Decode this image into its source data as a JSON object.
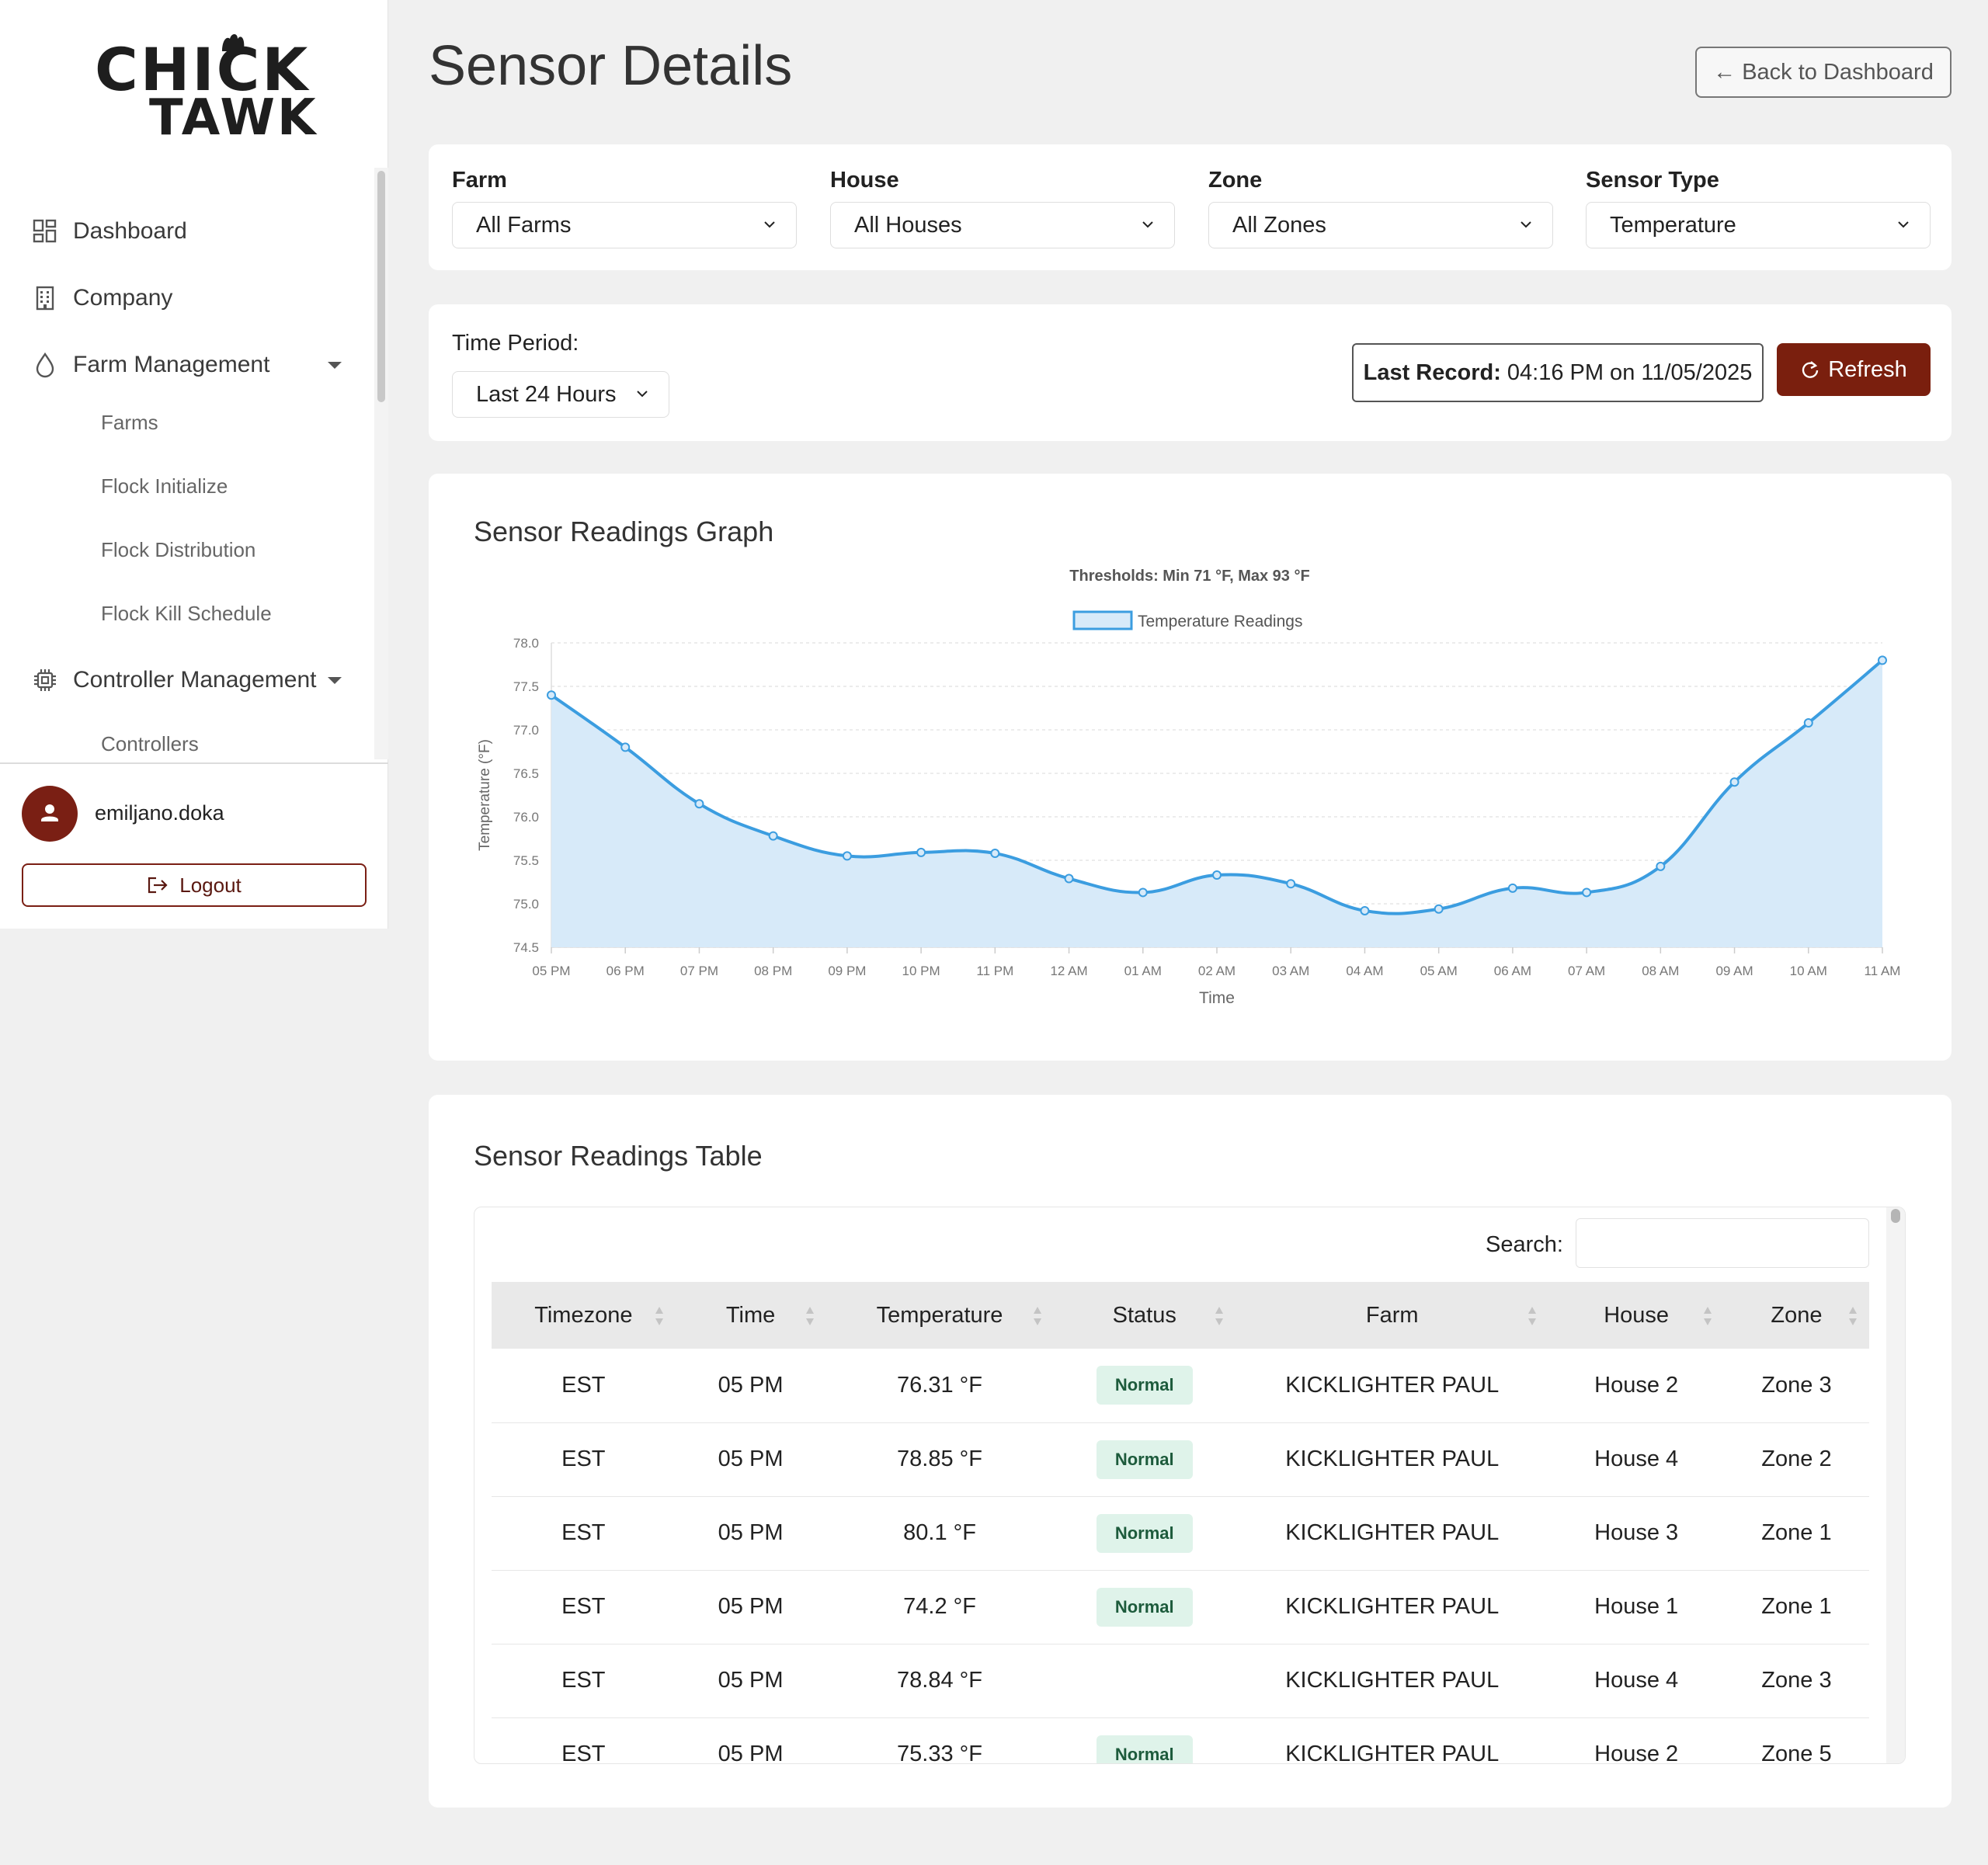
{
  "brand": {
    "line1": "CHICK",
    "line2": "TAWK"
  },
  "sidebar": {
    "items": [
      {
        "label": "Dashboard",
        "icon": "dashboard-grid-icon"
      },
      {
        "label": "Company",
        "icon": "building-icon"
      },
      {
        "label": "Farm Management",
        "icon": "water-drop-icon",
        "expanded": true
      },
      {
        "label": "Farms"
      },
      {
        "label": "Flock Initialize"
      },
      {
        "label": "Flock Distribution"
      },
      {
        "label": "Flock Kill Schedule"
      },
      {
        "label": "Controller Management",
        "icon": "chip-icon",
        "expanded": true
      },
      {
        "label": "Controllers"
      }
    ],
    "user": {
      "name": "emiljano.doka",
      "logout_label": "Logout"
    }
  },
  "header": {
    "title": "Sensor Details",
    "back_label": "← Back to Dashboard"
  },
  "filters": {
    "farm": {
      "label": "Farm",
      "value": "All Farms"
    },
    "house": {
      "label": "House",
      "value": "All Houses"
    },
    "zone": {
      "label": "Zone",
      "value": "All Zones"
    },
    "sensor_type": {
      "label": "Sensor Type",
      "value": "Temperature"
    }
  },
  "period": {
    "label": "Time Period:",
    "value": "Last 24 Hours",
    "last_record_label": "Last Record:",
    "last_record_value": "04:16 PM on 11/05/2025",
    "refresh_label": "Refresh"
  },
  "graph": {
    "title": "Sensor Readings Graph"
  },
  "chart_data": {
    "type": "area",
    "title": "Thresholds: Min 71 °F, Max 93 °F",
    "xlabel": "Time",
    "ylabel": "Temperature (°F)",
    "ylim": [
      74.5,
      78.0
    ],
    "yticks": [
      "74.5",
      "75.0",
      "75.5",
      "76.0",
      "76.5",
      "77.0",
      "77.5",
      "78.0"
    ],
    "grid": true,
    "legend_position": "top-center",
    "categories": [
      "05 PM",
      "06 PM",
      "07 PM",
      "08 PM",
      "09 PM",
      "10 PM",
      "11 PM",
      "12 AM",
      "01 AM",
      "02 AM",
      "03 AM",
      "04 AM",
      "05 AM",
      "06 AM",
      "07 AM",
      "08 AM",
      "09 AM",
      "10 AM",
      "11 AM"
    ],
    "series": [
      {
        "name": "Temperature Readings",
        "color": "#3b9de0",
        "values": [
          77.4,
          76.8,
          76.15,
          75.78,
          75.55,
          75.59,
          75.58,
          75.29,
          75.13,
          75.33,
          75.23,
          74.92,
          74.94,
          75.18,
          75.13,
          75.43,
          76.4,
          77.08,
          77.8
        ]
      }
    ]
  },
  "table": {
    "title": "Sensor Readings Table",
    "search_label": "Search:",
    "columns": [
      "Timezone",
      "Time",
      "Temperature",
      "Status",
      "Farm",
      "House",
      "Zone"
    ],
    "rows": [
      [
        "EST",
        "05 PM",
        "76.31 °F",
        "Normal",
        "KICKLIGHTER PAUL",
        "House 2",
        "Zone 3"
      ],
      [
        "EST",
        "05 PM",
        "78.85 °F",
        "Normal",
        "KICKLIGHTER PAUL",
        "House 4",
        "Zone 2"
      ],
      [
        "EST",
        "05 PM",
        "80.1 °F",
        "Normal",
        "KICKLIGHTER PAUL",
        "House 3",
        "Zone 1"
      ],
      [
        "EST",
        "05 PM",
        "74.2 °F",
        "Normal",
        "KICKLIGHTER PAUL",
        "House 1",
        "Zone 1"
      ],
      [
        "EST",
        "05 PM",
        "78.84 °F",
        "",
        "KICKLIGHTER PAUL",
        "House 4",
        "Zone 3"
      ],
      [
        "EST",
        "05 PM",
        "75.33 °F",
        "Normal",
        "KICKLIGHTER PAUL",
        "House 2",
        "Zone 5"
      ]
    ]
  },
  "colors": {
    "brand": "#7a1f14",
    "accent_line": "#3b9de0",
    "area_fill": "#d7eaf9",
    "badge_bg": "#dff3ea",
    "badge_text": "#1d5b3c"
  }
}
